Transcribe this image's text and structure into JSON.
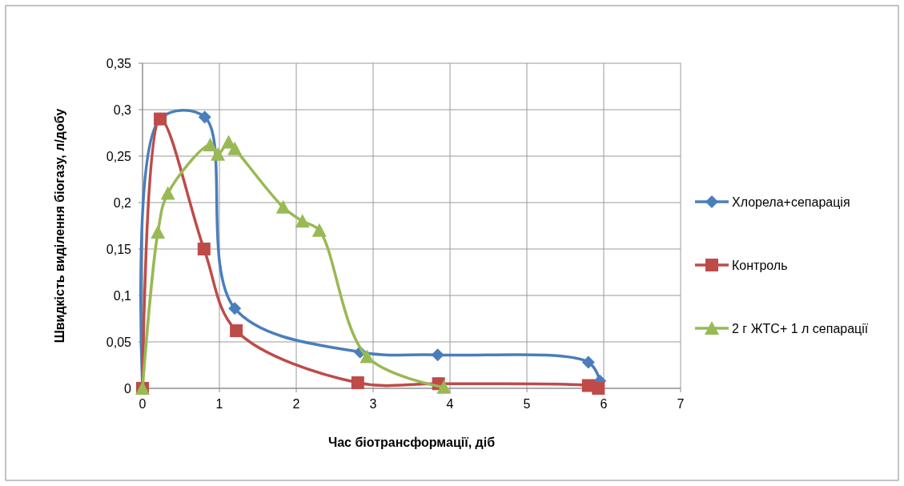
{
  "chart_data": {
    "type": "line",
    "xlabel": "Час біотрансформації, діб",
    "ylabel": "Швидкість виділення біогазу, л/добу",
    "xlim": [
      0,
      7
    ],
    "xticks": [
      0,
      1,
      2,
      3,
      4,
      5,
      6,
      7
    ],
    "ylim": [
      0,
      0.35
    ],
    "yticks": [
      {
        "value": 0,
        "label": "0"
      },
      {
        "value": 0.05,
        "label": "0,05"
      },
      {
        "value": 0.1,
        "label": "0,1"
      },
      {
        "value": 0.15,
        "label": "0,15"
      },
      {
        "value": 0.2,
        "label": "0,2"
      },
      {
        "value": 0.25,
        "label": "0,25"
      },
      {
        "value": 0.3,
        "label": "0,3"
      },
      {
        "value": 0.35,
        "label": "0,35"
      }
    ],
    "grid": true,
    "legend": "right",
    "series": [
      {
        "name": "Хлорела+сепарація",
        "color": "#4a7ebb",
        "marker": "diamond",
        "x": [
          0,
          0.23,
          0.81,
          1.2,
          2.83,
          3.84,
          5.8,
          5.95
        ],
        "values": [
          0,
          0.29,
          0.292,
          0.086,
          0.039,
          0.036,
          0.028,
          0.008
        ]
      },
      {
        "name": "Контроль",
        "color": "#be4b48",
        "marker": "square",
        "x": [
          0,
          0.23,
          0.8,
          1.22,
          2.8,
          3.85,
          5.8,
          5.93
        ],
        "values": [
          0,
          0.29,
          0.15,
          0.062,
          0.006,
          0.005,
          0.003,
          0
        ]
      },
      {
        "name": "2 г ЖТС+ 1 л сепарації",
        "color": "#98b954",
        "marker": "triangle",
        "x": [
          0,
          0.2,
          0.33,
          0.88,
          0.98,
          1.12,
          1.2,
          1.83,
          2.08,
          2.3,
          2.92,
          3.92
        ],
        "values": [
          0,
          0.168,
          0.21,
          0.262,
          0.252,
          0.265,
          0.258,
          0.195,
          0.18,
          0.17,
          0.034,
          0.001
        ]
      }
    ]
  }
}
